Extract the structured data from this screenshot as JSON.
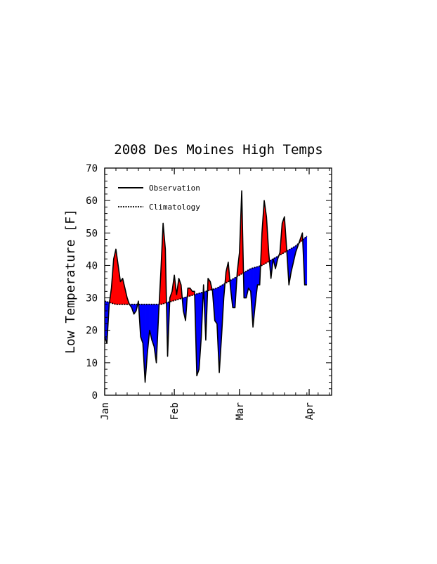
{
  "chart_data": {
    "type": "area",
    "title": "2008 Des Moines High Temps",
    "xlabel": "",
    "ylabel": "Low Temperature [F]",
    "ylim": [
      0,
      70
    ],
    "yticks": [
      0,
      10,
      20,
      30,
      40,
      50,
      60,
      70
    ],
    "xlim": [
      "2008-01-01",
      "2008-04-11"
    ],
    "xticks": [
      {
        "label": "Jan",
        "date": "2008-01-01"
      },
      {
        "label": "Feb",
        "date": "2008-02-01"
      },
      {
        "label": "Mar",
        "date": "2008-03-01"
      },
      {
        "label": "Apr",
        "date": "2008-04-01"
      }
    ],
    "fill_above_color": "#ff0000",
    "fill_below_color": "#0000ff",
    "legend": {
      "position": "top-left",
      "entries": [
        {
          "label": "Observation",
          "style": "solid"
        },
        {
          "label": "Climatology",
          "style": "dotted"
        }
      ]
    },
    "series": [
      {
        "name": "Observation",
        "x": [
          "2008-01-01",
          "2008-01-02",
          "2008-01-03",
          "2008-01-04",
          "2008-01-05",
          "2008-01-06",
          "2008-01-07",
          "2008-01-08",
          "2008-01-09",
          "2008-01-10",
          "2008-01-11",
          "2008-01-12",
          "2008-01-13",
          "2008-01-14",
          "2008-01-15",
          "2008-01-16",
          "2008-01-17",
          "2008-01-18",
          "2008-01-19",
          "2008-01-20",
          "2008-01-21",
          "2008-01-22",
          "2008-01-23",
          "2008-01-24",
          "2008-01-25",
          "2008-01-26",
          "2008-01-27",
          "2008-01-28",
          "2008-01-29",
          "2008-01-30",
          "2008-01-31",
          "2008-02-01",
          "2008-02-02",
          "2008-02-03",
          "2008-02-04",
          "2008-02-05",
          "2008-02-06",
          "2008-02-07",
          "2008-02-08",
          "2008-02-09",
          "2008-02-10",
          "2008-02-11",
          "2008-02-12",
          "2008-02-13",
          "2008-02-14",
          "2008-02-15",
          "2008-02-16",
          "2008-02-17",
          "2008-02-18",
          "2008-02-19",
          "2008-02-20",
          "2008-02-21",
          "2008-02-22",
          "2008-02-23",
          "2008-02-24",
          "2008-02-25",
          "2008-02-26",
          "2008-02-27",
          "2008-02-28",
          "2008-02-29",
          "2008-03-01",
          "2008-03-02",
          "2008-03-03",
          "2008-03-04",
          "2008-03-05",
          "2008-03-06",
          "2008-03-07",
          "2008-03-08",
          "2008-03-09",
          "2008-03-10",
          "2008-03-11",
          "2008-03-12",
          "2008-03-13",
          "2008-03-14",
          "2008-03-15",
          "2008-03-16",
          "2008-03-17",
          "2008-03-18",
          "2008-03-19",
          "2008-03-20",
          "2008-03-21",
          "2008-03-22",
          "2008-03-23",
          "2008-03-24",
          "2008-03-25",
          "2008-03-26",
          "2008-03-27",
          "2008-03-28",
          "2008-03-29",
          "2008-03-30",
          "2008-03-31"
        ],
        "values": [
          18,
          16,
          28,
          33,
          42,
          45,
          40,
          35,
          36,
          33,
          30,
          28,
          27,
          25,
          26,
          29,
          18,
          16,
          4,
          13,
          20,
          17,
          15,
          10,
          25,
          38,
          53,
          45,
          12,
          30,
          32,
          37,
          31,
          36,
          34,
          26,
          23,
          33,
          33,
          32,
          32,
          6,
          8,
          18,
          34,
          17,
          36,
          35,
          32,
          23,
          22,
          7,
          18,
          30,
          38,
          41,
          33,
          27,
          27,
          38,
          44,
          63,
          30,
          30,
          33,
          32,
          21,
          28,
          34,
          34,
          50,
          60,
          55,
          44,
          36,
          42,
          39,
          42,
          44,
          53,
          55,
          45,
          34,
          38,
          41,
          44,
          46,
          48,
          50,
          34,
          34
        ]
      },
      {
        "name": "Climatology",
        "x": [
          "2008-01-01",
          "2008-01-06",
          "2008-01-11",
          "2008-01-16",
          "2008-01-21",
          "2008-01-26",
          "2008-01-31",
          "2008-02-05",
          "2008-02-10",
          "2008-02-15",
          "2008-02-20",
          "2008-02-25",
          "2008-03-01",
          "2008-03-06",
          "2008-03-11",
          "2008-03-16",
          "2008-03-21",
          "2008-03-26",
          "2008-03-31"
        ],
        "values": [
          29,
          28,
          28,
          28,
          28,
          28,
          29,
          30,
          31,
          32,
          33,
          35,
          37,
          39,
          40,
          42,
          44,
          46,
          49
        ]
      }
    ]
  }
}
